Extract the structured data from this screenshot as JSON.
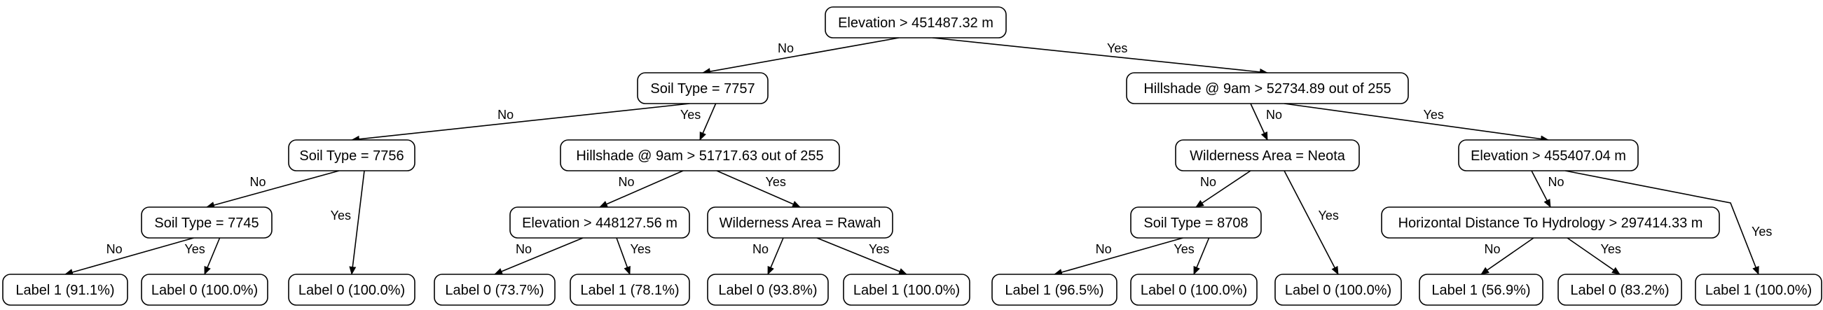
{
  "tree": {
    "nodes": [
      {
        "id": "n0",
        "text": "Elevation > 451487.32 m"
      },
      {
        "id": "n1",
        "text": "Soil Type = 7757"
      },
      {
        "id": "n2",
        "text": "Hillshade @ 9am > 52734.89 out of 255"
      },
      {
        "id": "n3",
        "text": "Soil Type = 7756"
      },
      {
        "id": "n4",
        "text": "Hillshade @ 9am > 51717.63 out of 255"
      },
      {
        "id": "n5",
        "text": "Wilderness Area = Neota"
      },
      {
        "id": "n6",
        "text": "Elevation > 455407.04 m"
      },
      {
        "id": "n7",
        "text": "Soil Type = 7745"
      },
      {
        "id": "n8",
        "text": "Label 0 (100.0%)"
      },
      {
        "id": "n9",
        "text": "Elevation > 448127.56 m"
      },
      {
        "id": "n10",
        "text": "Wilderness Area = Rawah"
      },
      {
        "id": "n11",
        "text": "Soil Type = 8708"
      },
      {
        "id": "n12",
        "text": "Label 0 (100.0%)"
      },
      {
        "id": "n13",
        "text": "Horizontal Distance To Hydrology > 297414.33 m"
      },
      {
        "id": "n14",
        "text": "Label 1 (100.0%)"
      },
      {
        "id": "n15",
        "text": "Label 1 (91.1%)"
      },
      {
        "id": "n16",
        "text": "Label 0 (100.0%)"
      },
      {
        "id": "n17",
        "text": "Label 0 (73.7%)"
      },
      {
        "id": "n18",
        "text": "Label 1 (78.1%)"
      },
      {
        "id": "n19",
        "text": "Label 0 (93.8%)"
      },
      {
        "id": "n20",
        "text": "Label 1 (100.0%)"
      },
      {
        "id": "n21",
        "text": "Label 1 (96.5%)"
      },
      {
        "id": "n22",
        "text": "Label 0 (100.0%)"
      },
      {
        "id": "n23",
        "text": "Label 1 (56.9%)"
      },
      {
        "id": "n24",
        "text": "Label 0 (83.2%)"
      }
    ],
    "edges": [
      {
        "from": "n0",
        "to": "n1",
        "label": "No"
      },
      {
        "from": "n0",
        "to": "n2",
        "label": "Yes"
      },
      {
        "from": "n1",
        "to": "n3",
        "label": "No"
      },
      {
        "from": "n1",
        "to": "n4",
        "label": "Yes"
      },
      {
        "from": "n2",
        "to": "n5",
        "label": "No"
      },
      {
        "from": "n2",
        "to": "n6",
        "label": "Yes"
      },
      {
        "from": "n3",
        "to": "n7",
        "label": "No"
      },
      {
        "from": "n3",
        "to": "n8",
        "label": "Yes"
      },
      {
        "from": "n4",
        "to": "n9",
        "label": "No"
      },
      {
        "from": "n4",
        "to": "n10",
        "label": "Yes"
      },
      {
        "from": "n5",
        "to": "n11",
        "label": "No"
      },
      {
        "from": "n5",
        "to": "n12",
        "label": "Yes"
      },
      {
        "from": "n6",
        "to": "n13",
        "label": "No"
      },
      {
        "from": "n6",
        "to": "n14",
        "label": "Yes"
      },
      {
        "from": "n7",
        "to": "n15",
        "label": "No"
      },
      {
        "from": "n7",
        "to": "n16",
        "label": "Yes"
      },
      {
        "from": "n9",
        "to": "n17",
        "label": "No"
      },
      {
        "from": "n9",
        "to": "n18",
        "label": "Yes"
      },
      {
        "from": "n10",
        "to": "n19",
        "label": "No"
      },
      {
        "from": "n10",
        "to": "n20",
        "label": "Yes"
      },
      {
        "from": "n11",
        "to": "n21",
        "label": "No"
      },
      {
        "from": "n11",
        "to": "n22",
        "label": "Yes"
      },
      {
        "from": "n13",
        "to": "n23",
        "label": "No"
      },
      {
        "from": "n13",
        "to": "n24",
        "label": "Yes"
      }
    ]
  }
}
